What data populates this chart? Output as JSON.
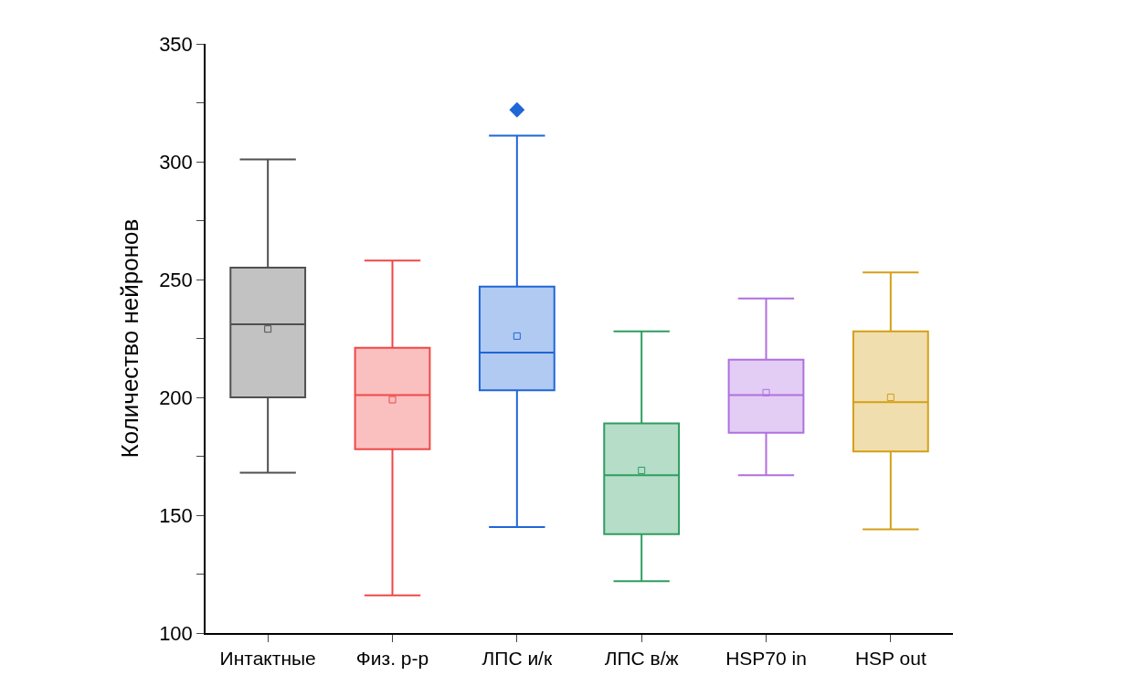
{
  "chart_data": {
    "type": "box",
    "ylabel": "Количество нейронов",
    "categories": [
      "Интактные",
      "Физ. р-р",
      "ЛПС и/к",
      "ЛПС в/ж",
      "HSP70 in",
      "HSP out"
    ],
    "boxes": [
      {
        "low": 168,
        "q1": 200,
        "median": 231,
        "q3": 255,
        "high": 301,
        "mean": 229
      },
      {
        "low": 116,
        "q1": 178,
        "median": 201,
        "q3": 221,
        "high": 258,
        "mean": 199
      },
      {
        "low": 145,
        "q1": 203,
        "median": 219,
        "q3": 247,
        "high": 311,
        "mean": 226,
        "outliers": [
          322
        ]
      },
      {
        "low": 122,
        "q1": 142,
        "median": 167,
        "q3": 189,
        "high": 228,
        "mean": 169
      },
      {
        "low": 167,
        "q1": 185,
        "median": 201,
        "q3": 216,
        "high": 242,
        "mean": 202
      },
      {
        "low": 144,
        "q1": 177,
        "median": 198,
        "q3": 228,
        "high": 253,
        "mean": 200
      }
    ],
    "colors": [
      "#505050",
      "#f04848",
      "#1f66d6",
      "#2e9e60",
      "#b070e0",
      "#d4a017"
    ],
    "ylim": [
      100,
      350
    ],
    "yticks": [
      100,
      {
        "value": 125,
        "label": null
      },
      150,
      {
        "value": 175,
        "label": null
      },
      200,
      {
        "value": 225,
        "label": null
      },
      250,
      {
        "value": 275,
        "label": null
      },
      300,
      {
        "value": 325,
        "label": null
      },
      350
    ],
    "marker": "square"
  }
}
